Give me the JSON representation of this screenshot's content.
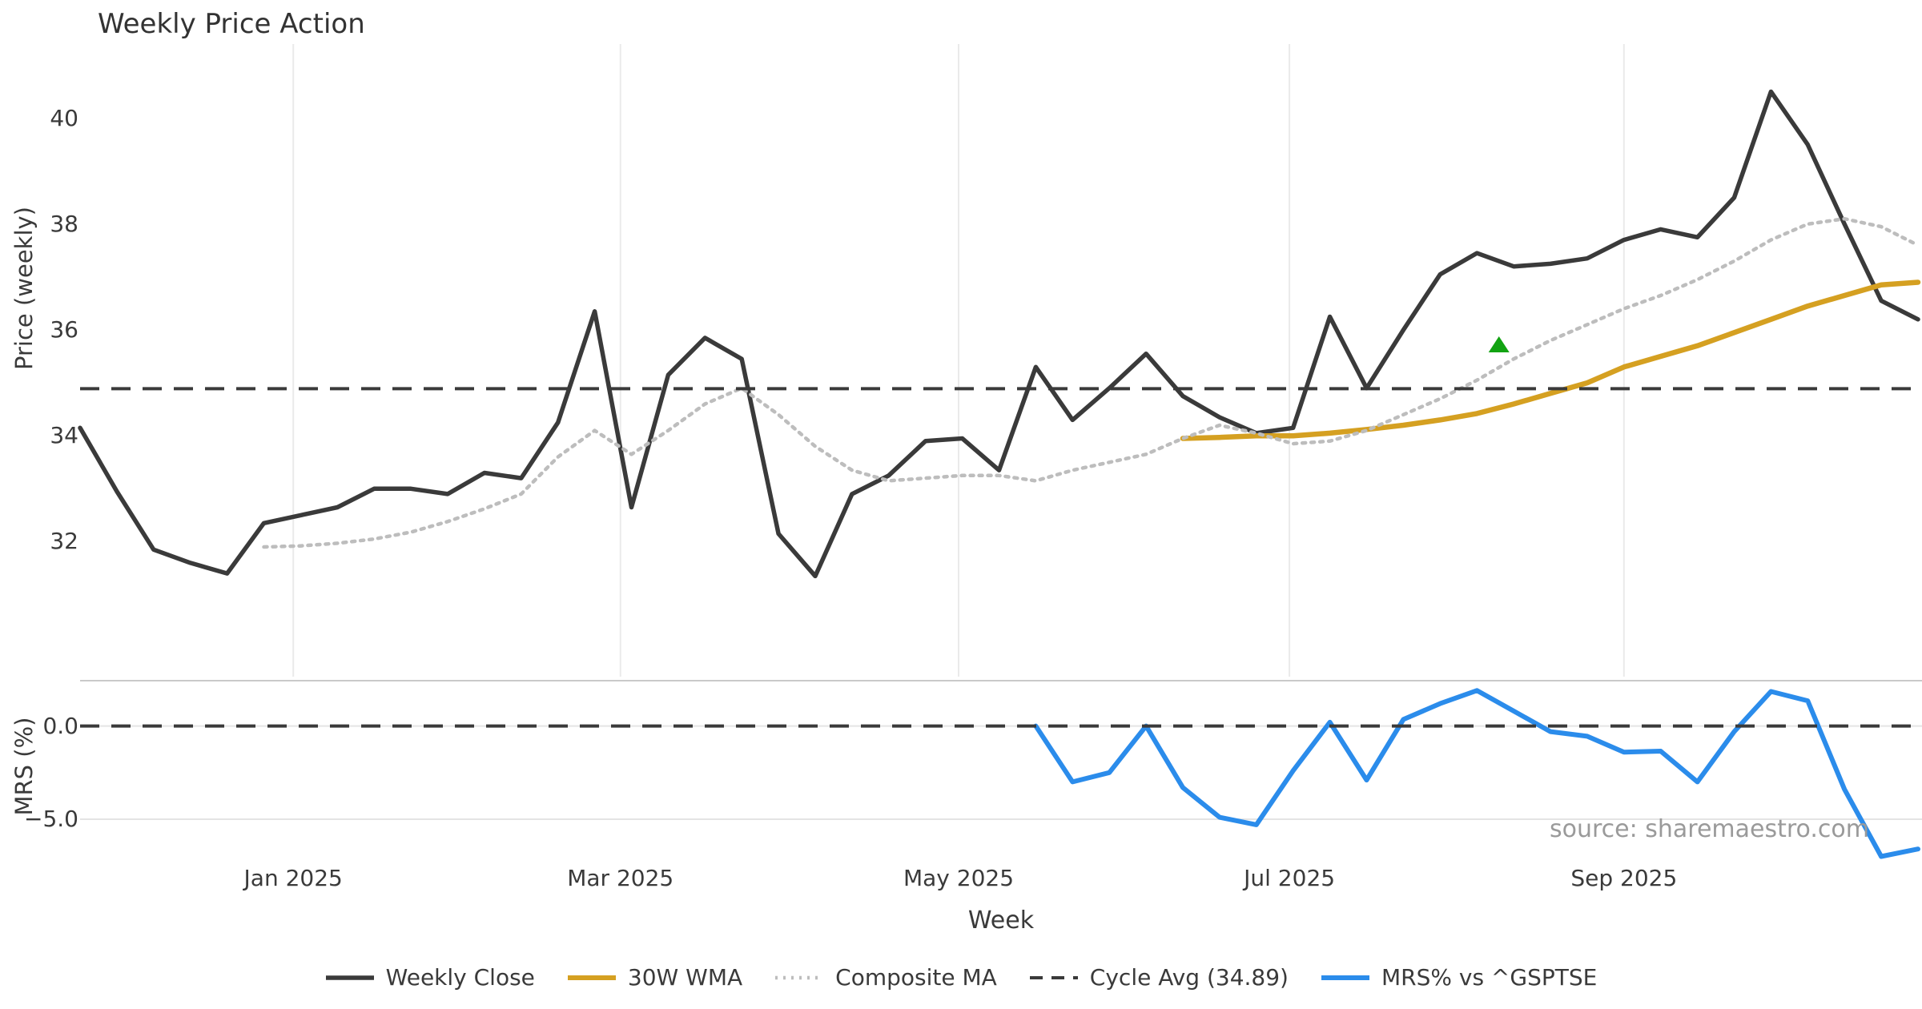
{
  "chart_data": {
    "type": "line",
    "title": "Weekly Price Action",
    "xlabel": "Week",
    "source_note": "source: sharemaestro.com",
    "weeks": 51,
    "x_axis": {
      "ticks": [
        {
          "label": "Jan 2025",
          "week": 5.8
        },
        {
          "label": "Mar 2025",
          "week": 14.7
        },
        {
          "label": "May 2025",
          "week": 23.9
        },
        {
          "label": "Jul 2025",
          "week": 32.9
        },
        {
          "label": "Sep 2025",
          "week": 42.0
        }
      ]
    },
    "panels": {
      "price": {
        "ylabel": "Price (weekly)",
        "ylim": [
          29.45,
          41.4
        ],
        "yticks": [
          {
            "label": "40",
            "value": 40
          },
          {
            "label": "38",
            "value": 38
          },
          {
            "label": "36",
            "value": 36
          },
          {
            "label": "34",
            "value": 34
          },
          {
            "label": "32",
            "value": 32
          }
        ]
      },
      "mrs": {
        "ylabel": "MRS (%)",
        "ylim": [
          -7.45,
          2.43
        ],
        "yticks": [
          {
            "label": "0.0",
            "value": 0
          },
          {
            "label": "−5.0",
            "value": -5
          }
        ]
      }
    },
    "cycle_avg_value": 34.89,
    "series": [
      {
        "name": "Weekly Close",
        "panel": "price",
        "style": "solid",
        "color": "#3a3a3a",
        "width": 5.5,
        "legend": true,
        "start_week": 0,
        "values": [
          34.15,
          32.95,
          31.85,
          31.6,
          31.4,
          32.35,
          32.5,
          32.65,
          33.0,
          33.0,
          32.9,
          33.3,
          33.2,
          34.25,
          36.35,
          32.65,
          35.15,
          35.85,
          35.45,
          32.15,
          31.35,
          32.9,
          33.25,
          33.9,
          33.95,
          33.35,
          35.3,
          34.3,
          34.9,
          35.55,
          34.75,
          34.35,
          34.05,
          34.15,
          36.25,
          34.9,
          36.0,
          37.05,
          37.45,
          37.2,
          37.25,
          37.35,
          37.7,
          37.9,
          37.75,
          38.5,
          40.5,
          39.5,
          38.0,
          36.55,
          36.2
        ]
      },
      {
        "name": "30W WMA",
        "panel": "price",
        "style": "solid",
        "color": "#d5a021",
        "width": 6.5,
        "legend": true,
        "start_week": 30,
        "values": [
          33.95,
          33.97,
          34.0,
          34.0,
          34.05,
          34.12,
          34.2,
          34.3,
          34.42,
          34.6,
          34.8,
          35.0,
          35.3,
          35.5,
          35.7,
          35.95,
          36.2,
          36.45,
          36.65,
          36.85,
          36.9
        ]
      },
      {
        "name": "Composite MA",
        "panel": "price",
        "style": "dotted",
        "color": "#bdbdbd",
        "width": 4.5,
        "legend": true,
        "start_week": 5,
        "values": [
          31.9,
          31.92,
          31.97,
          32.05,
          32.18,
          32.38,
          32.62,
          32.9,
          33.6,
          34.1,
          33.65,
          34.1,
          34.6,
          34.9,
          34.4,
          33.8,
          33.35,
          33.15,
          33.2,
          33.25,
          33.25,
          33.15,
          33.35,
          33.5,
          33.65,
          33.95,
          34.2,
          34.05,
          33.85,
          33.9,
          34.1,
          34.4,
          34.7,
          35.05,
          35.45,
          35.8,
          36.1,
          36.4,
          36.65,
          36.95,
          37.3,
          37.7,
          38.0,
          38.1,
          37.95,
          37.6
        ]
      },
      {
        "name": "Cycle Avg (34.89)",
        "panel": "price",
        "style": "dashed",
        "color": "#3a3a3a",
        "width": 4,
        "legend": true,
        "const_value": 34.89
      },
      {
        "name": "MRS% vs ^GSPTSE",
        "panel": "mrs",
        "style": "solid",
        "color": "#2b8ceb",
        "width": 6,
        "legend": true,
        "start_week": 26,
        "values": [
          0.0,
          -3.0,
          -2.5,
          0.0,
          -3.3,
          -4.9,
          -5.3,
          -2.4,
          0.2,
          -2.9,
          0.35,
          1.2,
          1.9,
          0.8,
          -0.3,
          -0.55,
          -1.4,
          -1.35,
          -3.0,
          -0.3,
          1.85,
          1.35,
          -3.4,
          -7.0,
          -6.6
        ]
      },
      {
        "name": "MRS Zero Line",
        "panel": "mrs",
        "style": "dashed",
        "color": "#3a3a3a",
        "width": 4,
        "legend": false,
        "const_value": 0
      }
    ],
    "marker": {
      "name": "buy-signal-triangle",
      "shape": "triangle-up",
      "color": "#12a312",
      "panel": "price",
      "week": 38.6,
      "value": 35.72
    },
    "colors": {
      "grid": "#eaeaea",
      "panel_border": "#c9c9c9",
      "mrs_gridline": "#e4e4e4",
      "text": "#3a3a3a",
      "muted": "#9a9a9a"
    }
  }
}
